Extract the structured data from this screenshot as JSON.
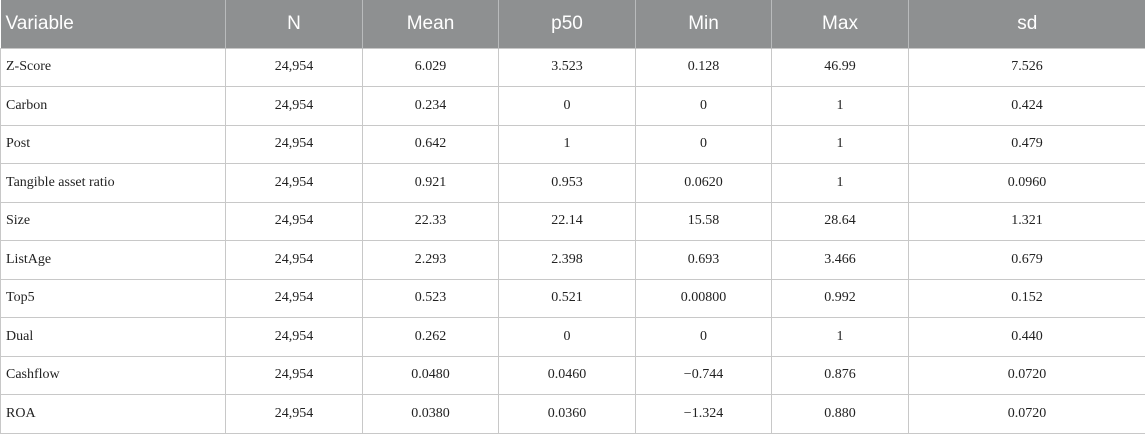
{
  "table": {
    "headers": [
      "Variable",
      "N",
      "Mean",
      "p50",
      "Min",
      "Max",
      "sd"
    ],
    "rows": [
      [
        "Z-Score",
        "24,954",
        "6.029",
        "3.523",
        "0.128",
        "46.99",
        "7.526"
      ],
      [
        "Carbon",
        "24,954",
        "0.234",
        "0",
        "0",
        "1",
        "0.424"
      ],
      [
        "Post",
        "24,954",
        "0.642",
        "1",
        "0",
        "1",
        "0.479"
      ],
      [
        "Tangible asset ratio",
        "24,954",
        "0.921",
        "0.953",
        "0.0620",
        "1",
        "0.0960"
      ],
      [
        "Size",
        "24,954",
        "22.33",
        "22.14",
        "15.58",
        "28.64",
        "1.321"
      ],
      [
        "ListAge",
        "24,954",
        "2.293",
        "2.398",
        "0.693",
        "3.466",
        "0.679"
      ],
      [
        "Top5",
        "24,954",
        "0.523",
        "0.521",
        "0.00800",
        "0.992",
        "0.152"
      ],
      [
        "Dual",
        "24,954",
        "0.262",
        "0",
        "0",
        "1",
        "0.440"
      ],
      [
        "Cashflow",
        "24,954",
        "0.0480",
        "0.0460",
        "−0.744",
        "0.876",
        "0.0720"
      ],
      [
        "ROA",
        "24,954",
        "0.0380",
        "0.0360",
        "−1.324",
        "0.880",
        "0.0720"
      ]
    ]
  },
  "colors": {
    "header_background": "#8e9091",
    "header_text": "#ffffff",
    "border": "#c8c8c8"
  }
}
